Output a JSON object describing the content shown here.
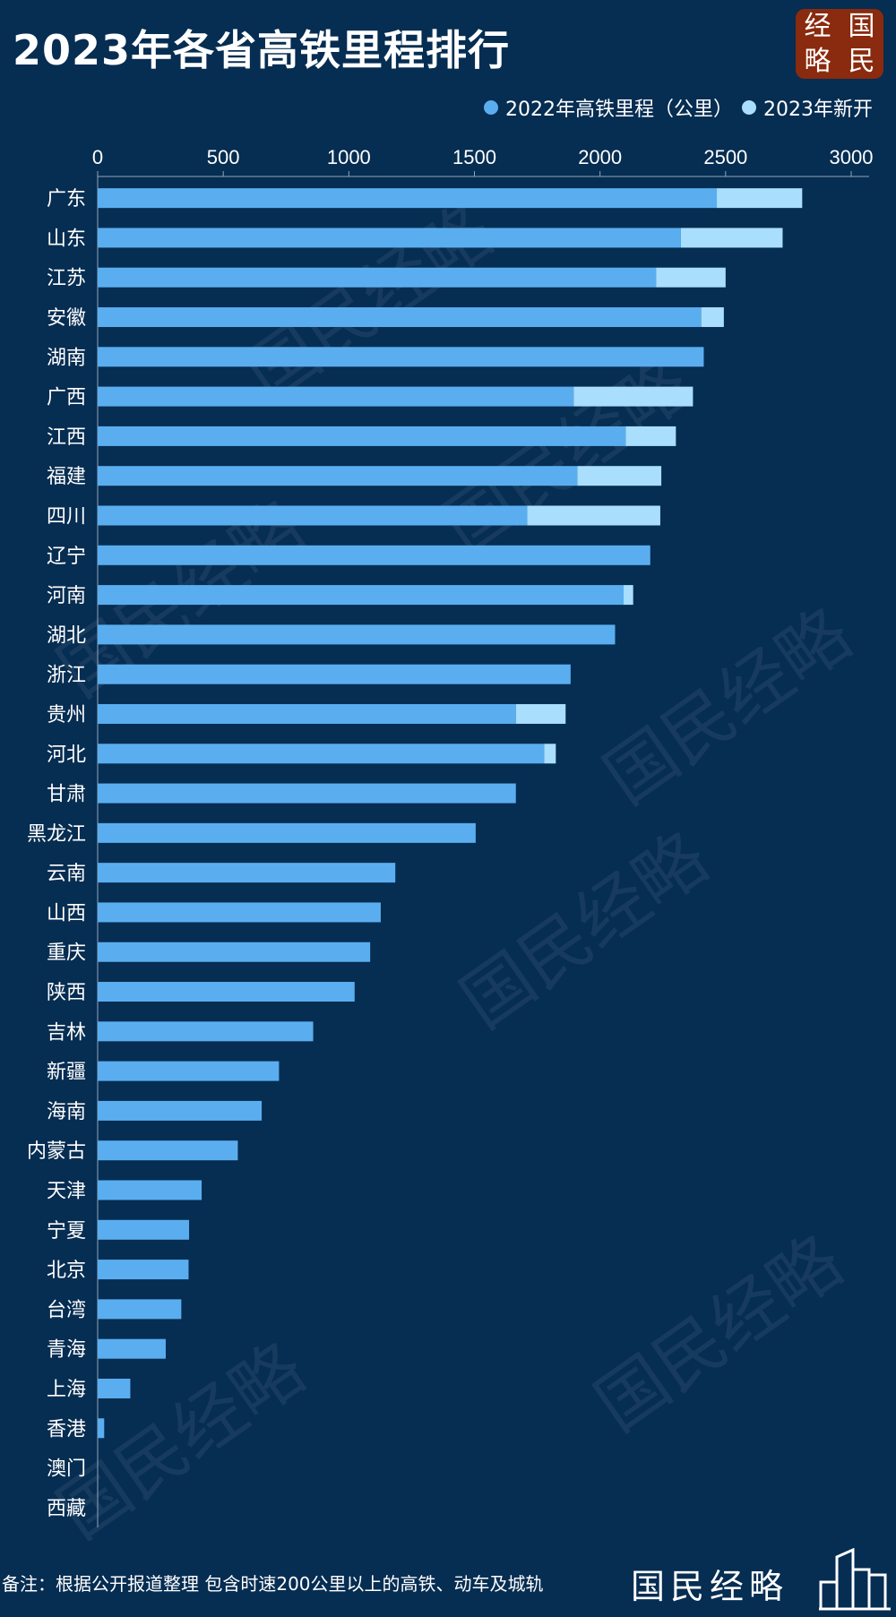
{
  "title": "2023年各省高铁里程排行",
  "logo": {
    "chars": [
      "经",
      "国",
      "略",
      "民"
    ]
  },
  "legend": [
    {
      "label": "2022年高铁里程（公里）",
      "color": "#5aaef0"
    },
    {
      "label": "2023年新开",
      "color": "#a9defc"
    }
  ],
  "footnote": "备注：根据公开报道整理  包含时速200公里以上的高铁、动车及城轨",
  "brand": "国民经略",
  "watermark": "国民经略",
  "chart_data": {
    "type": "bar",
    "orientation": "horizontal",
    "stacked": true,
    "xlim": [
      0,
      3000
    ],
    "xticks": [
      0,
      500,
      1000,
      1500,
      2000,
      2500,
      3000
    ],
    "categories": [
      "广东",
      "山东",
      "江苏",
      "安徽",
      "湖南",
      "广西",
      "江西",
      "福建",
      "四川",
      "辽宁",
      "河南",
      "湖北",
      "浙江",
      "贵州",
      "河北",
      "甘肃",
      "黑龙江",
      "云南",
      "山西",
      "重庆",
      "陕西",
      "吉林",
      "新疆",
      "海南",
      "内蒙古",
      "天津",
      "宁夏",
      "北京",
      "台湾",
      "青海",
      "上海",
      "香港",
      "澳门",
      "西藏"
    ],
    "series": [
      {
        "name": "2022年高铁里程（公里）",
        "color": "#5aaef0",
        "values": [
          2465,
          2322,
          2223,
          2403,
          2413,
          1895,
          2102,
          1910,
          1710,
          2200,
          2094,
          2060,
          1883,
          1665,
          1778,
          1665,
          1505,
          1185,
          1127,
          1085,
          1023,
          858,
          722,
          653,
          558,
          414,
          364,
          362,
          333,
          271,
          130,
          26,
          0,
          0
        ]
      },
      {
        "name": "2023年新开",
        "color": "#a9defc",
        "values": [
          340,
          405,
          277,
          90,
          0,
          475,
          200,
          334,
          530,
          0,
          38,
          0,
          0,
          198,
          46,
          0,
          0,
          0,
          0,
          0,
          0,
          0,
          0,
          0,
          0,
          0,
          0,
          0,
          0,
          0,
          0,
          0,
          0,
          0
        ]
      }
    ],
    "legend_position": "top-right",
    "grid": false
  }
}
